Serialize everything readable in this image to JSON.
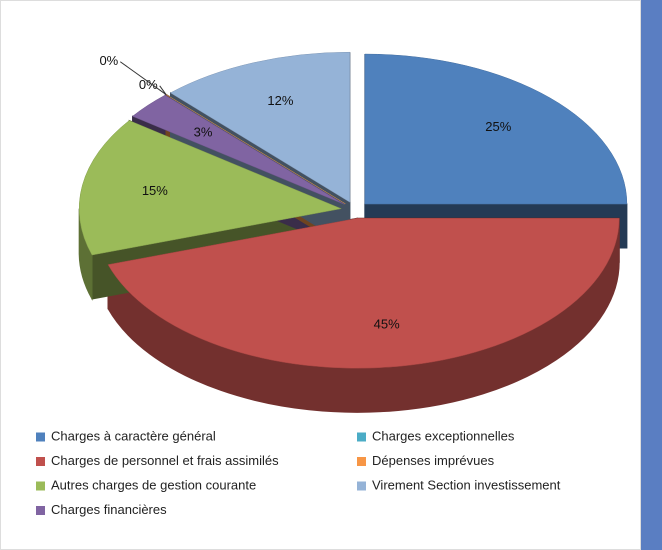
{
  "chart_data": {
    "type": "pie3d",
    "categories": [
      "Charges à caractère général",
      "Charges de personnel et frais assimilés",
      "Autres charges de gestion courante",
      "Charges financières",
      "Charges exceptionnelles",
      "Dépenses imprévues",
      "Virement Section investissement"
    ],
    "values": [
      25,
      45,
      15,
      3,
      0,
      0,
      12
    ],
    "value_labels": [
      "25%",
      "45%",
      "15%",
      "3%",
      "0%",
      "0%",
      "12%"
    ],
    "colors": [
      "#4f81bd",
      "#c0504d",
      "#9bbb59",
      "#8064a2",
      "#4bacc6",
      "#f79646",
      "#95b3d7"
    ],
    "legend": "bottom"
  }
}
